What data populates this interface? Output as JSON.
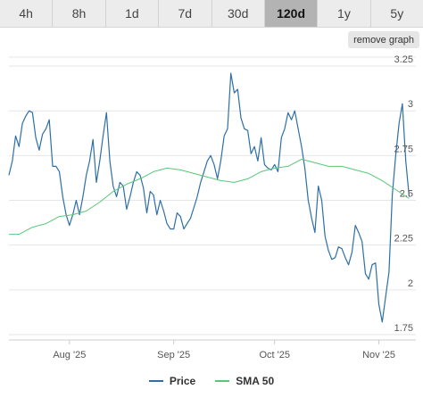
{
  "tabs": [
    {
      "label": "4h"
    },
    {
      "label": "8h"
    },
    {
      "label": "1d"
    },
    {
      "label": "7d"
    },
    {
      "label": "30d"
    },
    {
      "label": "120d",
      "active": true
    },
    {
      "label": "1y"
    },
    {
      "label": "5y"
    }
  ],
  "remove_graph_label": "remove graph",
  "colors": {
    "price": "#2e6fa7",
    "sma": "#57c878",
    "grid": "#e6e6e6"
  },
  "chart_data": {
    "type": "line",
    "title": "",
    "xlabel": "",
    "ylabel": "",
    "ylim": [
      1.72,
      3.3
    ],
    "y_ticks": [
      1.75,
      2,
      2.25,
      2.5,
      2.75,
      3,
      3.25
    ],
    "y_tick_labels": [
      "1.75",
      "2",
      "2.25",
      "2.5",
      "2.75",
      "3",
      "3.25"
    ],
    "x_range": [
      "2025-07-14",
      "2025-11-12"
    ],
    "x_ticks": [
      {
        "date": "2025-08-01",
        "label": "Aug '25"
      },
      {
        "date": "2025-09-01",
        "label": "Sep '25"
      },
      {
        "date": "2025-10-01",
        "label": "Oct '25"
      },
      {
        "date": "2025-11-01",
        "label": "Nov '25"
      }
    ],
    "grid": true,
    "legend_position": "bottom",
    "series": [
      {
        "name": "Price",
        "data": [
          [
            "2025-07-14",
            2.64
          ],
          [
            "2025-07-15",
            2.72
          ],
          [
            "2025-07-16",
            2.86
          ],
          [
            "2025-07-17",
            2.8
          ],
          [
            "2025-07-18",
            2.93
          ],
          [
            "2025-07-19",
            2.97
          ],
          [
            "2025-07-20",
            3.0
          ],
          [
            "2025-07-21",
            2.99
          ],
          [
            "2025-07-22",
            2.85
          ],
          [
            "2025-07-23",
            2.78
          ],
          [
            "2025-07-24",
            2.87
          ],
          [
            "2025-07-25",
            2.9
          ],
          [
            "2025-07-26",
            2.95
          ],
          [
            "2025-07-27",
            2.69
          ],
          [
            "2025-07-28",
            2.69
          ],
          [
            "2025-07-29",
            2.66
          ],
          [
            "2025-07-30",
            2.52
          ],
          [
            "2025-07-31",
            2.42
          ],
          [
            "2025-08-01",
            2.36
          ],
          [
            "2025-08-02",
            2.42
          ],
          [
            "2025-08-03",
            2.5
          ],
          [
            "2025-08-04",
            2.42
          ],
          [
            "2025-08-05",
            2.52
          ],
          [
            "2025-08-06",
            2.64
          ],
          [
            "2025-08-07",
            2.72
          ],
          [
            "2025-08-08",
            2.84
          ],
          [
            "2025-08-09",
            2.6
          ],
          [
            "2025-08-10",
            2.72
          ],
          [
            "2025-08-11",
            2.86
          ],
          [
            "2025-08-12",
            2.99
          ],
          [
            "2025-08-13",
            2.72
          ],
          [
            "2025-08-14",
            2.58
          ],
          [
            "2025-08-15",
            2.52
          ],
          [
            "2025-08-16",
            2.6
          ],
          [
            "2025-08-17",
            2.58
          ],
          [
            "2025-08-18",
            2.45
          ],
          [
            "2025-08-19",
            2.52
          ],
          [
            "2025-08-20",
            2.6
          ],
          [
            "2025-08-21",
            2.66
          ],
          [
            "2025-08-22",
            2.64
          ],
          [
            "2025-08-23",
            2.57
          ],
          [
            "2025-08-24",
            2.43
          ],
          [
            "2025-08-25",
            2.55
          ],
          [
            "2025-08-26",
            2.53
          ],
          [
            "2025-08-27",
            2.42
          ],
          [
            "2025-08-28",
            2.5
          ],
          [
            "2025-08-29",
            2.44
          ],
          [
            "2025-08-30",
            2.37
          ],
          [
            "2025-08-31",
            2.34
          ],
          [
            "2025-09-01",
            2.34
          ],
          [
            "2025-09-02",
            2.43
          ],
          [
            "2025-09-03",
            2.41
          ],
          [
            "2025-09-04",
            2.34
          ],
          [
            "2025-09-05",
            2.37
          ],
          [
            "2025-09-06",
            2.4
          ],
          [
            "2025-09-07",
            2.46
          ],
          [
            "2025-09-08",
            2.52
          ],
          [
            "2025-09-09",
            2.6
          ],
          [
            "2025-09-10",
            2.66
          ],
          [
            "2025-09-11",
            2.72
          ],
          [
            "2025-09-12",
            2.75
          ],
          [
            "2025-09-13",
            2.7
          ],
          [
            "2025-09-14",
            2.62
          ],
          [
            "2025-09-15",
            2.72
          ],
          [
            "2025-09-16",
            2.86
          ],
          [
            "2025-09-17",
            2.9
          ],
          [
            "2025-09-18",
            3.21
          ],
          [
            "2025-09-19",
            3.1
          ],
          [
            "2025-09-20",
            3.12
          ],
          [
            "2025-09-21",
            2.96
          ],
          [
            "2025-09-22",
            2.9
          ],
          [
            "2025-09-23",
            2.89
          ],
          [
            "2025-09-24",
            2.76
          ],
          [
            "2025-09-25",
            2.8
          ],
          [
            "2025-09-26",
            2.72
          ],
          [
            "2025-09-27",
            2.85
          ],
          [
            "2025-09-28",
            2.7
          ],
          [
            "2025-09-29",
            2.68
          ],
          [
            "2025-09-30",
            2.67
          ],
          [
            "2025-10-01",
            2.7
          ],
          [
            "2025-10-02",
            2.66
          ],
          [
            "2025-10-03",
            2.85
          ],
          [
            "2025-10-04",
            2.9
          ],
          [
            "2025-10-05",
            2.99
          ],
          [
            "2025-10-06",
            2.95
          ],
          [
            "2025-10-07",
            3.0
          ],
          [
            "2025-10-08",
            2.9
          ],
          [
            "2025-10-09",
            2.8
          ],
          [
            "2025-10-10",
            2.68
          ],
          [
            "2025-10-11",
            2.5
          ],
          [
            "2025-10-12",
            2.4
          ],
          [
            "2025-10-13",
            2.32
          ],
          [
            "2025-10-14",
            2.58
          ],
          [
            "2025-10-15",
            2.5
          ],
          [
            "2025-10-16",
            2.3
          ],
          [
            "2025-10-17",
            2.22
          ],
          [
            "2025-10-18",
            2.17
          ],
          [
            "2025-10-19",
            2.18
          ],
          [
            "2025-10-20",
            2.24
          ],
          [
            "2025-10-21",
            2.23
          ],
          [
            "2025-10-22",
            2.18
          ],
          [
            "2025-10-23",
            2.14
          ],
          [
            "2025-10-24",
            2.21
          ],
          [
            "2025-10-25",
            2.36
          ],
          [
            "2025-10-26",
            2.32
          ],
          [
            "2025-10-27",
            2.27
          ],
          [
            "2025-10-28",
            2.09
          ],
          [
            "2025-10-29",
            2.06
          ],
          [
            "2025-10-30",
            2.14
          ],
          [
            "2025-10-31",
            2.15
          ],
          [
            "2025-11-01",
            1.92
          ],
          [
            "2025-11-02",
            1.82
          ],
          [
            "2025-11-03",
            1.96
          ],
          [
            "2025-11-04",
            2.1
          ],
          [
            "2025-11-05",
            2.53
          ],
          [
            "2025-11-06",
            2.75
          ],
          [
            "2025-11-07",
            2.93
          ],
          [
            "2025-11-08",
            3.04
          ],
          [
            "2025-11-09",
            2.72
          ],
          [
            "2025-11-10",
            2.52
          ]
        ]
      },
      {
        "name": "SMA 50",
        "data": [
          [
            "2025-07-14",
            2.31
          ],
          [
            "2025-07-17",
            2.31
          ],
          [
            "2025-07-21",
            2.35
          ],
          [
            "2025-07-25",
            2.37
          ],
          [
            "2025-07-29",
            2.41
          ],
          [
            "2025-08-02",
            2.42
          ],
          [
            "2025-08-06",
            2.44
          ],
          [
            "2025-08-10",
            2.49
          ],
          [
            "2025-08-14",
            2.55
          ],
          [
            "2025-08-18",
            2.59
          ],
          [
            "2025-08-22",
            2.62
          ],
          [
            "2025-08-26",
            2.66
          ],
          [
            "2025-08-30",
            2.68
          ],
          [
            "2025-09-03",
            2.67
          ],
          [
            "2025-09-07",
            2.65
          ],
          [
            "2025-09-11",
            2.63
          ],
          [
            "2025-09-15",
            2.61
          ],
          [
            "2025-09-19",
            2.6
          ],
          [
            "2025-09-23",
            2.62
          ],
          [
            "2025-09-27",
            2.66
          ],
          [
            "2025-10-01",
            2.68
          ],
          [
            "2025-10-05",
            2.69
          ],
          [
            "2025-10-09",
            2.73
          ],
          [
            "2025-10-13",
            2.71
          ],
          [
            "2025-10-17",
            2.69
          ],
          [
            "2025-10-21",
            2.69
          ],
          [
            "2025-10-25",
            2.67
          ],
          [
            "2025-10-29",
            2.65
          ],
          [
            "2025-11-02",
            2.61
          ],
          [
            "2025-11-06",
            2.56
          ],
          [
            "2025-11-10",
            2.51
          ]
        ]
      }
    ]
  }
}
